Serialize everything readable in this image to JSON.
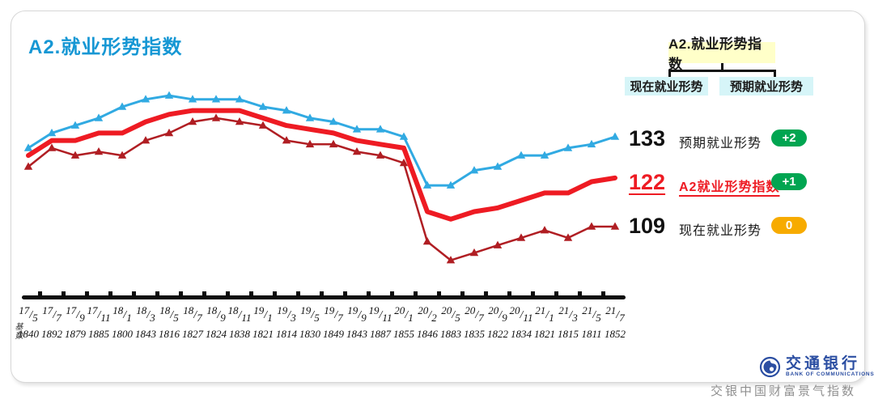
{
  "header": {
    "title": "A2.就业形势指数"
  },
  "legend_tree": {
    "parent": "A2.就业形势指数",
    "child_left": "现在就业形势",
    "child_right": "预期就业形势",
    "parent_bg": "#FFFFC9",
    "child_bg": "#D6F5F8"
  },
  "chart_data": {
    "type": "line",
    "title": "A2.就业形势指数",
    "categories": [
      "17/5",
      "17/7",
      "17/9",
      "17/11",
      "18/1",
      "18/3",
      "18/5",
      "18/7",
      "18/9",
      "18/11",
      "19/1",
      "19/3",
      "19/5",
      "19/7",
      "19/9",
      "19/11",
      "20/1",
      "20/2",
      "20/5",
      "20/7",
      "20/9",
      "20/11",
      "21/1",
      "21/3",
      "21/5",
      "21/7"
    ],
    "base_label": "基数",
    "base_counts": [
      "1840",
      "1892",
      "1879",
      "1885",
      "1800",
      "1843",
      "1816",
      "1827",
      "1824",
      "1838",
      "1821",
      "1814",
      "1830",
      "1849",
      "1843",
      "1887",
      "1855",
      "1846",
      "1883",
      "1835",
      "1822",
      "1834",
      "1821",
      "1815",
      "1811",
      "1852"
    ],
    "series": [
      {
        "name": "预期就业形势",
        "color": "#31AAE2",
        "marker": "triangle",
        "line_width": 3,
        "end_value": "133",
        "change": "+2",
        "badge_color": "#00A551",
        "values": [
          130,
          134,
          136,
          138,
          141,
          143,
          144,
          143,
          143,
          143,
          141,
          140,
          138,
          137,
          135,
          135,
          133,
          120,
          120,
          124,
          125,
          128,
          128,
          130,
          131,
          133
        ]
      },
      {
        "name": "现在就业形势",
        "color": "#B01E23",
        "marker": "triangle",
        "line_width": 2.5,
        "end_value": "109",
        "change": "0",
        "badge_color": "#F7AB00",
        "values": [
          125,
          130,
          128,
          129,
          128,
          132,
          134,
          137,
          138,
          137,
          136,
          132,
          131,
          131,
          129,
          128,
          126,
          105,
          100,
          102,
          104,
          106,
          108,
          106,
          109,
          109
        ]
      },
      {
        "name": "A2就业形势指数",
        "color": "#EE1B23",
        "marker": "none",
        "line_width": 6,
        "end_value": "122",
        "change": "+1",
        "badge_color": "#00A551",
        "values": [
          128,
          132,
          132,
          134,
          134,
          137,
          139,
          140,
          140,
          140,
          138,
          136,
          135,
          134,
          132,
          131,
          130,
          113,
          111,
          113,
          114,
          116,
          118,
          118,
          121,
          122
        ]
      }
    ],
    "ylim": [
      95,
      150
    ],
    "grid": false,
    "legend_position": "right"
  },
  "footer": {
    "logo_cn": "交通银行",
    "logo_en": "BANK OF COMMUNICATIONS",
    "caption": "交银中国财富景气指数"
  }
}
